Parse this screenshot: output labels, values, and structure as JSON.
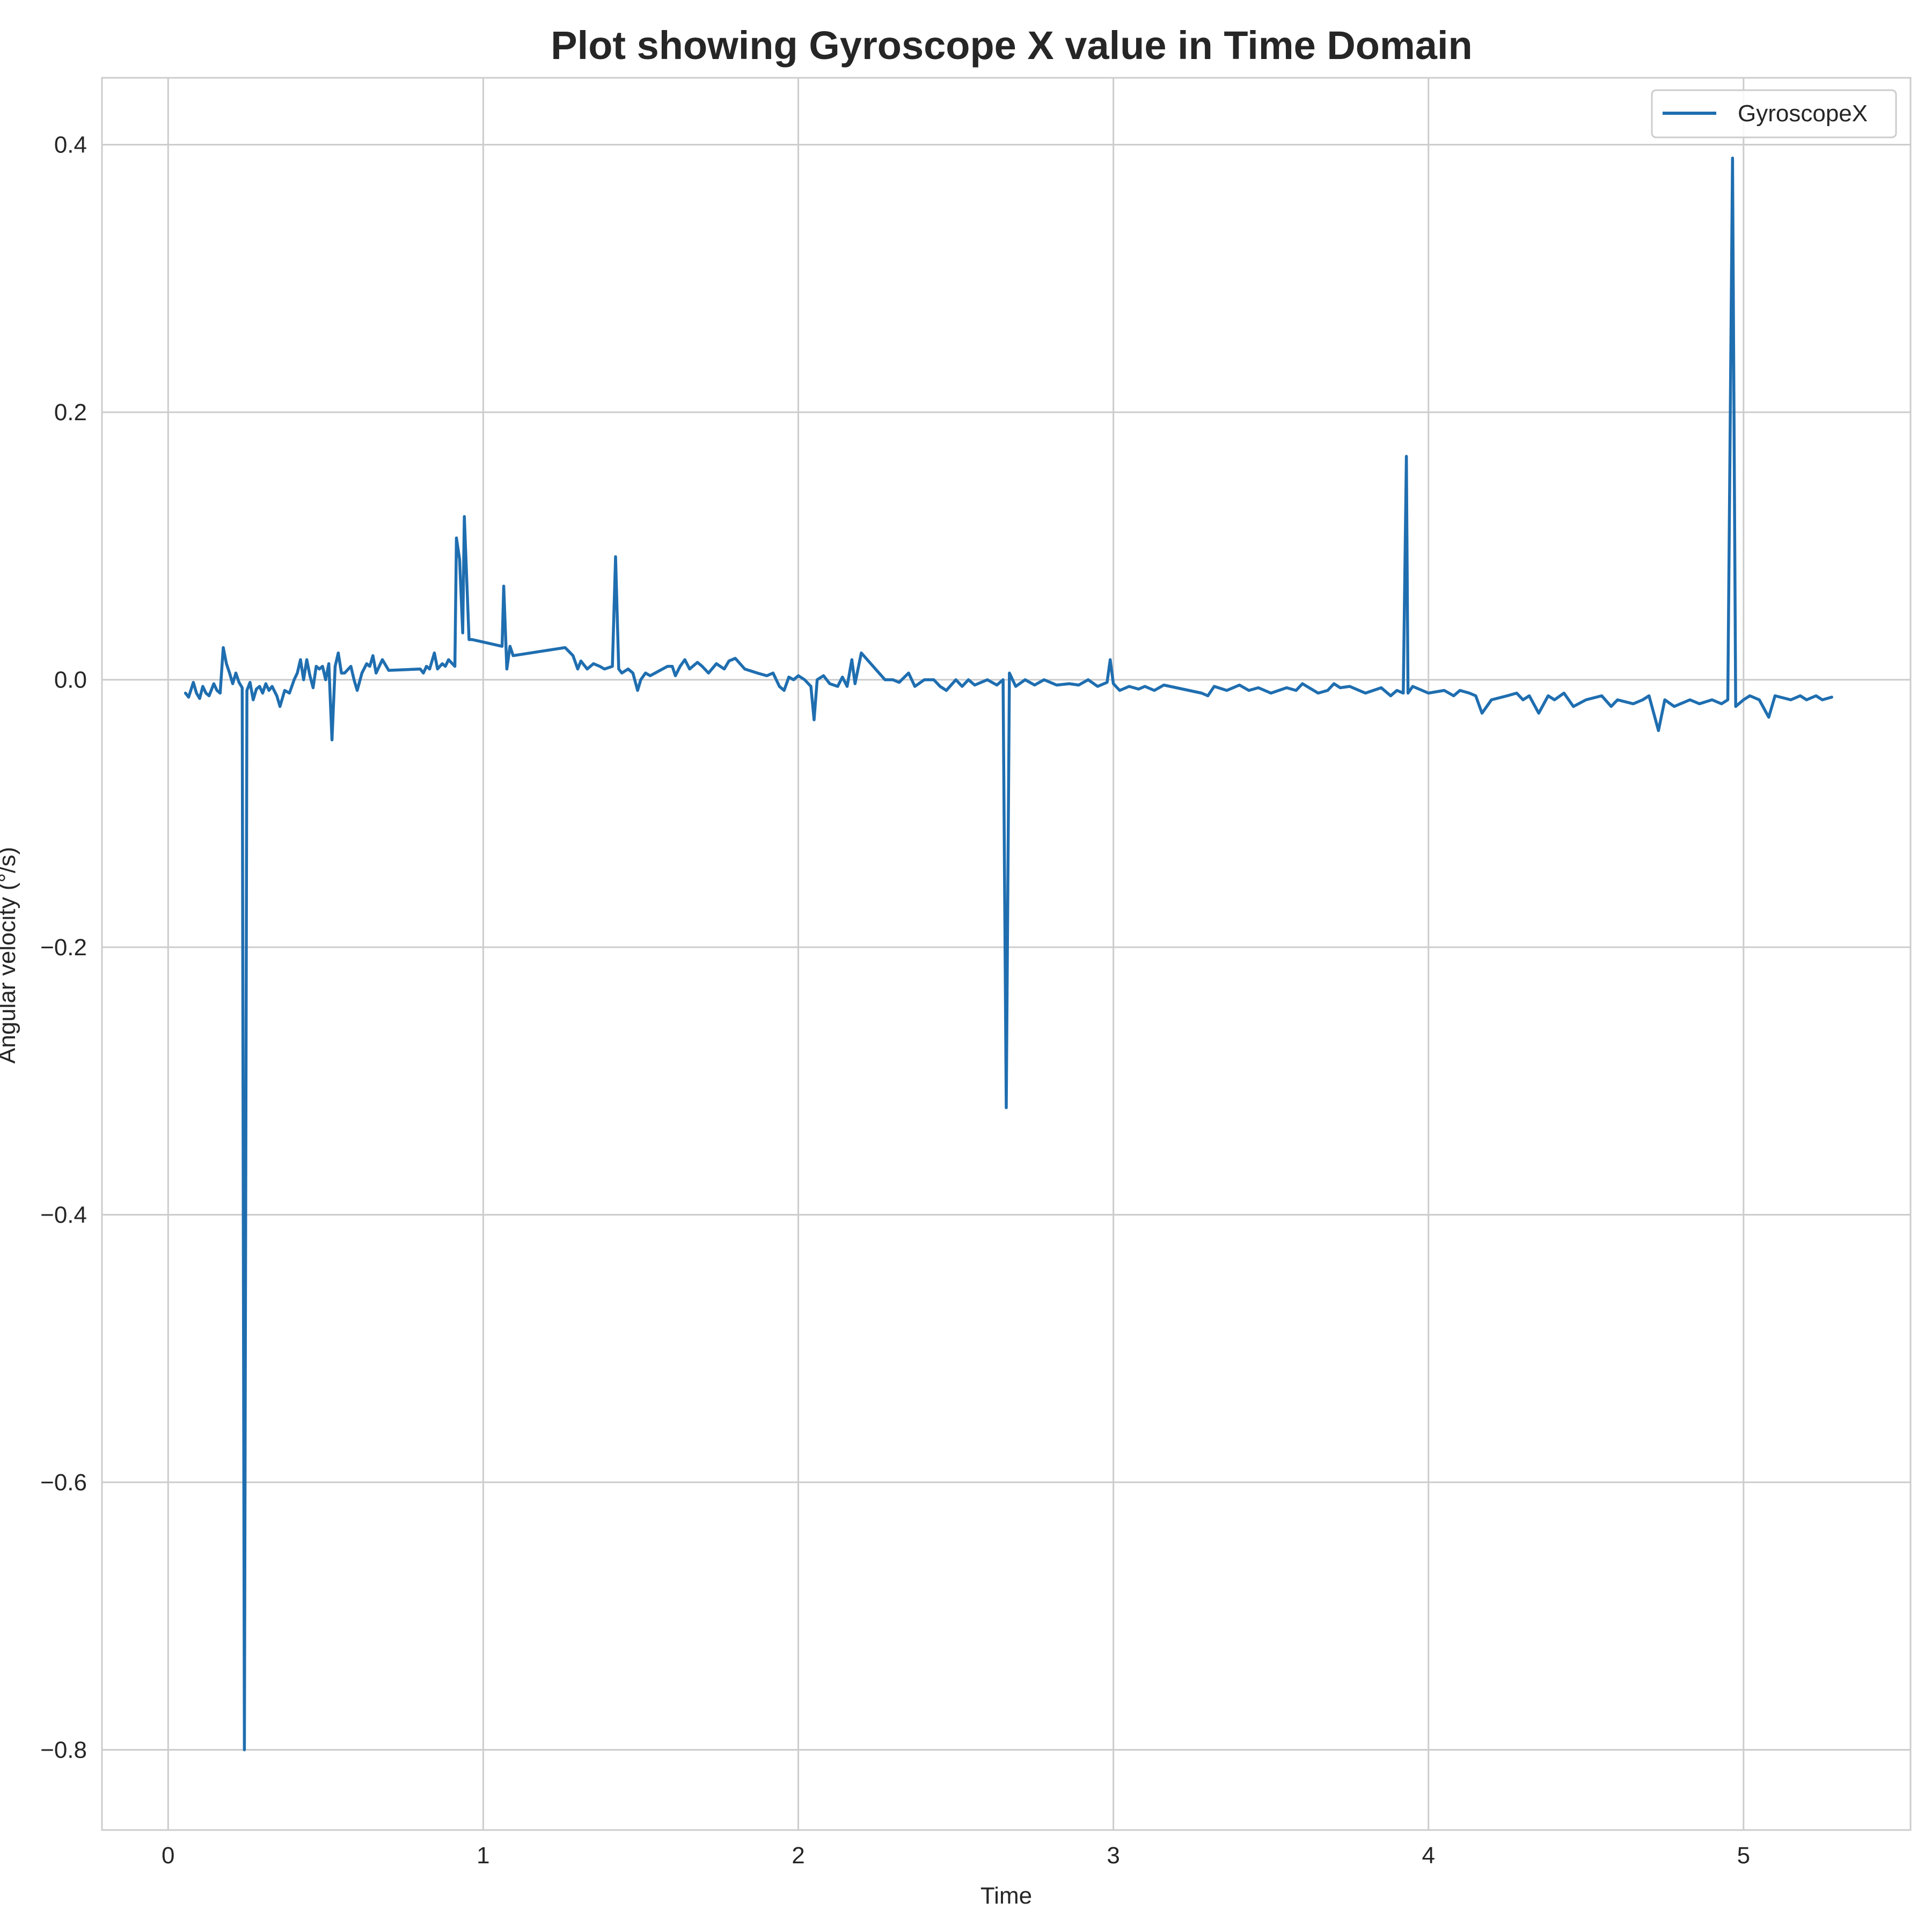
{
  "chart_data": {
    "type": "line",
    "title": "Plot showing Gyroscope X value in Time Domain",
    "xlabel": "Time",
    "ylabel": "Angular velocity (°/s)",
    "xlim": [
      -0.21,
      5.53
    ],
    "ylim": [
      -0.86,
      0.45
    ],
    "xticks": [
      0,
      1,
      2,
      3,
      4,
      5
    ],
    "xtick_labels": [
      "0",
      "1",
      "2",
      "3",
      "4",
      "5"
    ],
    "yticks": [
      0.4,
      0.2,
      0.0,
      -0.2,
      -0.4,
      -0.6,
      -0.8
    ],
    "ytick_labels": [
      "0.4",
      "0.2",
      "0.0",
      "−0.2",
      "−0.4",
      "−0.6",
      "−0.8"
    ],
    "grid": true,
    "legend": {
      "position": "top-right"
    },
    "series": [
      {
        "name": "GyroscopeX",
        "color": "#1f6eb0",
        "points": [
          [
            0.055,
            -0.01
          ],
          [
            0.065,
            -0.013
          ],
          [
            0.08,
            -0.002
          ],
          [
            0.09,
            -0.01
          ],
          [
            0.1,
            -0.014
          ],
          [
            0.11,
            -0.005
          ],
          [
            0.12,
            -0.01
          ],
          [
            0.13,
            -0.012
          ],
          [
            0.145,
            -0.003
          ],
          [
            0.155,
            -0.008
          ],
          [
            0.165,
            -0.01
          ],
          [
            0.175,
            0.024
          ],
          [
            0.185,
            0.012
          ],
          [
            0.195,
            0.005
          ],
          [
            0.205,
            -0.003
          ],
          [
            0.215,
            0.005
          ],
          [
            0.225,
            -0.002
          ],
          [
            0.235,
            -0.006
          ],
          [
            0.242,
            -0.8
          ],
          [
            0.25,
            -0.008
          ],
          [
            0.26,
            -0.002
          ],
          [
            0.27,
            -0.015
          ],
          [
            0.28,
            -0.007
          ],
          [
            0.29,
            -0.005
          ],
          [
            0.3,
            -0.01
          ],
          [
            0.31,
            -0.003
          ],
          [
            0.32,
            -0.008
          ],
          [
            0.33,
            -0.005
          ],
          [
            0.345,
            -0.012
          ],
          [
            0.355,
            -0.02
          ],
          [
            0.37,
            -0.008
          ],
          [
            0.385,
            -0.01
          ],
          [
            0.4,
            0.0
          ],
          [
            0.41,
            0.005
          ],
          [
            0.42,
            0.015
          ],
          [
            0.43,
            0.0
          ],
          [
            0.44,
            0.015
          ],
          [
            0.45,
            0.003
          ],
          [
            0.46,
            -0.006
          ],
          [
            0.47,
            0.01
          ],
          [
            0.48,
            0.008
          ],
          [
            0.49,
            0.01
          ],
          [
            0.5,
            0.0
          ],
          [
            0.51,
            0.012
          ],
          [
            0.52,
            -0.045
          ],
          [
            0.53,
            0.01
          ],
          [
            0.54,
            0.02
          ],
          [
            0.55,
            0.005
          ],
          [
            0.56,
            0.005
          ],
          [
            0.58,
            0.01
          ],
          [
            0.59,
            0.0
          ],
          [
            0.6,
            -0.008
          ],
          [
            0.615,
            0.005
          ],
          [
            0.63,
            0.012
          ],
          [
            0.64,
            0.01
          ],
          [
            0.65,
            0.018
          ],
          [
            0.66,
            0.005
          ],
          [
            0.68,
            0.015
          ],
          [
            0.7,
            0.007
          ],
          [
            0.8,
            0.008
          ],
          [
            0.81,
            0.005
          ],
          [
            0.82,
            0.01
          ],
          [
            0.83,
            0.008
          ],
          [
            0.845,
            0.02
          ],
          [
            0.855,
            0.008
          ],
          [
            0.87,
            0.012
          ],
          [
            0.88,
            0.01
          ],
          [
            0.89,
            0.015
          ],
          [
            0.91,
            0.01
          ],
          [
            0.915,
            0.106
          ],
          [
            0.925,
            0.09
          ],
          [
            0.935,
            0.035
          ],
          [
            0.94,
            0.122
          ],
          [
            0.955,
            0.03
          ],
          [
            0.965,
            0.03
          ],
          [
            1.06,
            0.025
          ],
          [
            1.065,
            0.07
          ],
          [
            1.075,
            0.008
          ],
          [
            1.085,
            0.025
          ],
          [
            1.095,
            0.018
          ],
          [
            1.26,
            0.024
          ],
          [
            1.285,
            0.018
          ],
          [
            1.3,
            0.008
          ],
          [
            1.31,
            0.014
          ],
          [
            1.33,
            0.008
          ],
          [
            1.35,
            0.012
          ],
          [
            1.37,
            0.01
          ],
          [
            1.385,
            0.008
          ],
          [
            1.41,
            0.01
          ],
          [
            1.42,
            0.092
          ],
          [
            1.43,
            0.008
          ],
          [
            1.44,
            0.005
          ],
          [
            1.46,
            0.008
          ],
          [
            1.475,
            0.005
          ],
          [
            1.49,
            -0.008
          ],
          [
            1.5,
            0.0
          ],
          [
            1.515,
            0.005
          ],
          [
            1.53,
            0.003
          ],
          [
            1.585,
            0.01
          ],
          [
            1.6,
            0.01
          ],
          [
            1.61,
            0.003
          ],
          [
            1.625,
            0.01
          ],
          [
            1.64,
            0.015
          ],
          [
            1.655,
            0.008
          ],
          [
            1.68,
            0.013
          ],
          [
            1.695,
            0.01
          ],
          [
            1.715,
            0.005
          ],
          [
            1.74,
            0.012
          ],
          [
            1.765,
            0.008
          ],
          [
            1.78,
            0.014
          ],
          [
            1.8,
            0.016
          ],
          [
            1.83,
            0.008
          ],
          [
            1.87,
            0.005
          ],
          [
            1.9,
            0.003
          ],
          [
            1.92,
            0.005
          ],
          [
            1.94,
            -0.005
          ],
          [
            1.955,
            -0.008
          ],
          [
            1.97,
            0.002
          ],
          [
            1.985,
            0.0
          ],
          [
            2.0,
            0.003
          ],
          [
            2.02,
            0.0
          ],
          [
            2.04,
            -0.005
          ],
          [
            2.05,
            -0.03
          ],
          [
            2.06,
            0.0
          ],
          [
            2.08,
            0.003
          ],
          [
            2.1,
            -0.003
          ],
          [
            2.125,
            -0.005
          ],
          [
            2.14,
            0.002
          ],
          [
            2.155,
            -0.005
          ],
          [
            2.17,
            0.015
          ],
          [
            2.18,
            -0.003
          ],
          [
            2.2,
            0.02
          ],
          [
            2.275,
            0.0
          ],
          [
            2.3,
            0.0
          ],
          [
            2.32,
            -0.002
          ],
          [
            2.35,
            0.005
          ],
          [
            2.37,
            -0.005
          ],
          [
            2.4,
            0.0
          ],
          [
            2.43,
            0.0
          ],
          [
            2.45,
            -0.005
          ],
          [
            2.47,
            -0.008
          ],
          [
            2.5,
            0.0
          ],
          [
            2.52,
            -0.005
          ],
          [
            2.54,
            0.0
          ],
          [
            2.56,
            -0.004
          ],
          [
            2.6,
            0.0
          ],
          [
            2.63,
            -0.004
          ],
          [
            2.65,
            0.0
          ],
          [
            2.66,
            -0.32
          ],
          [
            2.67,
            0.005
          ],
          [
            2.69,
            -0.005
          ],
          [
            2.72,
            0.0
          ],
          [
            2.75,
            -0.004
          ],
          [
            2.78,
            0.0
          ],
          [
            2.82,
            -0.004
          ],
          [
            2.86,
            -0.003
          ],
          [
            2.89,
            -0.004
          ],
          [
            2.92,
            0.0
          ],
          [
            2.95,
            -0.005
          ],
          [
            2.98,
            -0.002
          ],
          [
            2.99,
            0.015
          ],
          [
            3.0,
            -0.003
          ],
          [
            3.02,
            -0.008
          ],
          [
            3.05,
            -0.005
          ],
          [
            3.08,
            -0.007
          ],
          [
            3.1,
            -0.005
          ],
          [
            3.13,
            -0.008
          ],
          [
            3.16,
            -0.004
          ],
          [
            3.2,
            -0.006
          ],
          [
            3.28,
            -0.01
          ],
          [
            3.3,
            -0.012
          ],
          [
            3.32,
            -0.005
          ],
          [
            3.36,
            -0.008
          ],
          [
            3.4,
            -0.004
          ],
          [
            3.43,
            -0.008
          ],
          [
            3.46,
            -0.006
          ],
          [
            3.5,
            -0.01
          ],
          [
            3.55,
            -0.006
          ],
          [
            3.58,
            -0.008
          ],
          [
            3.6,
            -0.003
          ],
          [
            3.65,
            -0.01
          ],
          [
            3.68,
            -0.008
          ],
          [
            3.7,
            -0.003
          ],
          [
            3.72,
            -0.006
          ],
          [
            3.75,
            -0.005
          ],
          [
            3.8,
            -0.01
          ],
          [
            3.85,
            -0.006
          ],
          [
            3.88,
            -0.012
          ],
          [
            3.9,
            -0.008
          ],
          [
            3.92,
            -0.01
          ],
          [
            3.93,
            0.167
          ],
          [
            3.935,
            -0.01
          ],
          [
            3.95,
            -0.005
          ],
          [
            3.98,
            -0.008
          ],
          [
            4.0,
            -0.01
          ],
          [
            4.05,
            -0.008
          ],
          [
            4.08,
            -0.012
          ],
          [
            4.1,
            -0.008
          ],
          [
            4.13,
            -0.01
          ],
          [
            4.15,
            -0.012
          ],
          [
            4.17,
            -0.025
          ],
          [
            4.2,
            -0.015
          ],
          [
            4.25,
            -0.012
          ],
          [
            4.28,
            -0.01
          ],
          [
            4.3,
            -0.015
          ],
          [
            4.32,
            -0.012
          ],
          [
            4.35,
            -0.025
          ],
          [
            4.38,
            -0.012
          ],
          [
            4.4,
            -0.015
          ],
          [
            4.43,
            -0.01
          ],
          [
            4.46,
            -0.02
          ],
          [
            4.5,
            -0.015
          ],
          [
            4.55,
            -0.012
          ],
          [
            4.58,
            -0.02
          ],
          [
            4.6,
            -0.015
          ],
          [
            4.65,
            -0.018
          ],
          [
            4.68,
            -0.015
          ],
          [
            4.7,
            -0.012
          ],
          [
            4.73,
            -0.038
          ],
          [
            4.75,
            -0.015
          ],
          [
            4.78,
            -0.02
          ],
          [
            4.8,
            -0.018
          ],
          [
            4.83,
            -0.015
          ],
          [
            4.86,
            -0.018
          ],
          [
            4.9,
            -0.015
          ],
          [
            4.93,
            -0.018
          ],
          [
            4.95,
            -0.015
          ],
          [
            4.965,
            0.39
          ],
          [
            4.975,
            -0.02
          ],
          [
            5.0,
            -0.015
          ],
          [
            5.02,
            -0.012
          ],
          [
            5.05,
            -0.015
          ],
          [
            5.08,
            -0.028
          ],
          [
            5.1,
            -0.012
          ],
          [
            5.15,
            -0.015
          ],
          [
            5.18,
            -0.012
          ],
          [
            5.2,
            -0.015
          ],
          [
            5.23,
            -0.012
          ],
          [
            5.25,
            -0.015
          ],
          [
            5.28,
            -0.013
          ]
        ]
      }
    ]
  }
}
